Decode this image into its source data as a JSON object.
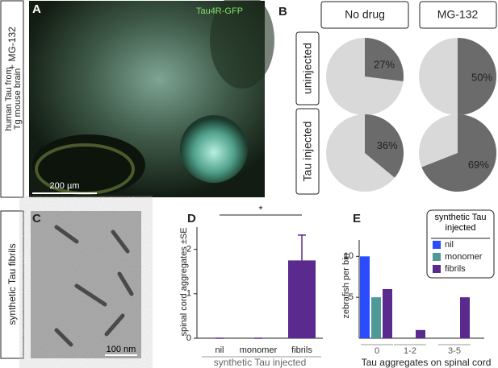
{
  "figure": {
    "row_a_label": [
      "human Tau from",
      "Tg mouse brain"
    ],
    "row_a_treatment": "+ MG-132",
    "row_c_label": "synthetic Tau fibrils",
    "panel_a": {
      "letter": "A",
      "caption": "Tau4R-GFP",
      "scale_bar": "200 µm"
    },
    "panel_c": {
      "letter": "C",
      "scale_bar": "100 nm"
    }
  },
  "chart_data": [
    {
      "type": "pie",
      "letter": "B",
      "columns": [
        "No drug",
        "MG-132"
      ],
      "rows": [
        "uninjected",
        "Tau injected"
      ],
      "values": [
        [
          27,
          50
        ],
        [
          36,
          69
        ]
      ],
      "value_labels": [
        [
          "27%",
          "50%"
        ],
        [
          "36%",
          "69%"
        ]
      ],
      "color": "#6b6b6b",
      "rest_color": "#d9d9d9"
    },
    {
      "type": "bar",
      "letter": "D",
      "ylabel": "spinal cord aggregates ±SE",
      "xgroup_label": "synthetic Tau injected",
      "categories": [
        "nil",
        "monomer",
        "fibrils"
      ],
      "values": [
        0,
        0,
        1.75
      ],
      "errors": [
        0,
        0,
        0.57
      ],
      "color": "#5b2a8e",
      "ylim": [
        0,
        2.5
      ],
      "yticks": [
        0,
        1,
        2
      ],
      "annotation": {
        "text": "*",
        "from": 0,
        "to": 2
      }
    },
    {
      "type": "grouped_bar",
      "letter": "E",
      "ylabel": "zebrafish per bin",
      "xlabel": "Tau aggregates on spinal cord",
      "categories": [
        "0",
        "1-2",
        "3-5"
      ],
      "legend_title": "synthetic Tau injected",
      "series": [
        {
          "name": "nil",
          "color": "#2b4bff",
          "values": [
            10,
            0,
            0
          ]
        },
        {
          "name": "monomer",
          "color": "#4f9a98",
          "values": [
            5,
            0,
            0
          ]
        },
        {
          "name": "fibrils",
          "color": "#5b2a8e",
          "values": [
            6,
            1,
            5
          ]
        }
      ],
      "ylim": [
        0,
        12
      ],
      "yticks": [
        5,
        10
      ]
    }
  ]
}
